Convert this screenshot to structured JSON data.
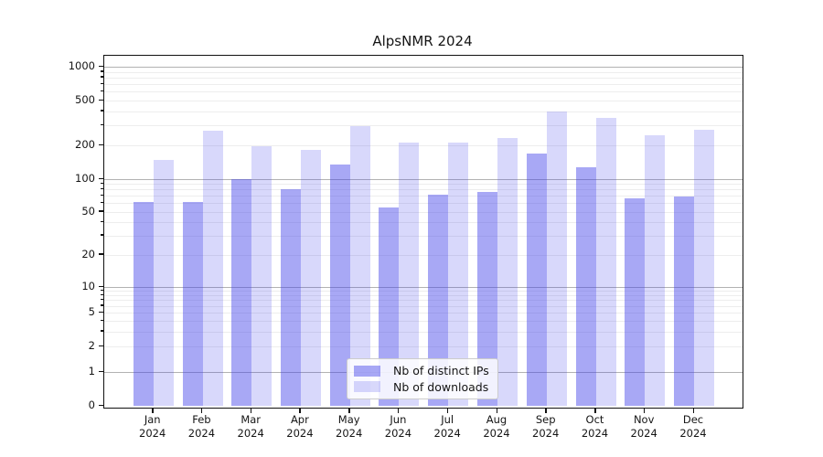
{
  "title": "AlpsNMR 2024",
  "chart_data": {
    "type": "bar",
    "title": "AlpsNMR 2024",
    "categories": [
      "Jan",
      "Feb",
      "Mar",
      "Apr",
      "May",
      "Jun",
      "Jul",
      "Aug",
      "Sep",
      "Oct",
      "Nov",
      "Dec"
    ],
    "category_year": "2024",
    "series": [
      {
        "name": "Nb of distinct IPs",
        "values": [
          61,
          61,
          100,
          81,
          134,
          55,
          72,
          76,
          168,
          127,
          66,
          69
        ]
      },
      {
        "name": "Nb of downloads",
        "values": [
          148,
          270,
          195,
          182,
          295,
          213,
          210,
          232,
          398,
          352,
          247,
          277
        ]
      }
    ],
    "y_axis": {
      "scale": "symlog",
      "tick_values": [
        0,
        1,
        2,
        5,
        10,
        20,
        50,
        100,
        200,
        500,
        1000
      ],
      "major_grid_values": [
        1,
        10,
        100,
        1000
      ],
      "range": [
        0,
        1300
      ]
    },
    "legend_position": "lower center",
    "grid": true
  },
  "colors": {
    "bar_base": "rgba(62,62,233,1)",
    "bar_alpha_ips": 0.45,
    "bar_alpha_downloads": 0.2,
    "grid_minor": "#ededed",
    "grid_major": "#b2b2b2",
    "spine": "#111111",
    "text": "#151515"
  }
}
